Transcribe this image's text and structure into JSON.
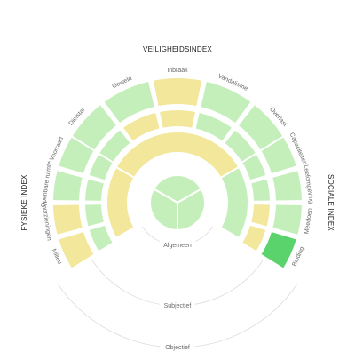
{
  "colors": {
    "green_light": "#c4efbb",
    "yellow": "#f2e79a",
    "green_strong": "#5bd36c",
    "ring_line": "#dddddd",
    "label": "#6b6b6b",
    "title": "#1a1a1a"
  },
  "chart_data": {
    "type": "sunburst",
    "title": "",
    "ring_labels": [
      "Algemeen",
      "Subjectief",
      "Objectief"
    ],
    "indices": [
      {
        "name": "VEILIGHEIDSINDEX",
        "categories": [
          "Diefstal",
          "Geweld",
          "Inbraak",
          "Vandalisme",
          "Overlast"
        ],
        "objectief": [
          "green_light",
          "green_light",
          "yellow",
          "green_light",
          "green_light"
        ],
        "subjectief": [
          "green_light",
          "yellow",
          "yellow",
          "green_light",
          "green_light"
        ],
        "algemeen": "yellow"
      },
      {
        "name": "SOCIALE INDEX",
        "categories": [
          "Capaciteiten",
          "Leefomgeving",
          "Meedoen",
          "Binding"
        ],
        "objectief": [
          "green_light",
          "green_light",
          "green_light",
          "green_strong"
        ],
        "subjectief": [
          "green_light",
          "green_light",
          "yellow",
          "yellow"
        ],
        "algemeen": "green_light"
      },
      {
        "name": "FYSIEKE INDEX",
        "categories": [
          "Milieu",
          "Voorzieningen",
          "Openbare ruimte",
          "Voorraad"
        ],
        "objectief": [
          "yellow",
          "yellow",
          "green_light",
          "green_light"
        ],
        "subjectief": [
          "green_light",
          "green_light",
          "green_light",
          "green_light"
        ],
        "algemeen": "yellow"
      }
    ],
    "center": [
      "green_light",
      "green_light",
      "green_light"
    ]
  }
}
